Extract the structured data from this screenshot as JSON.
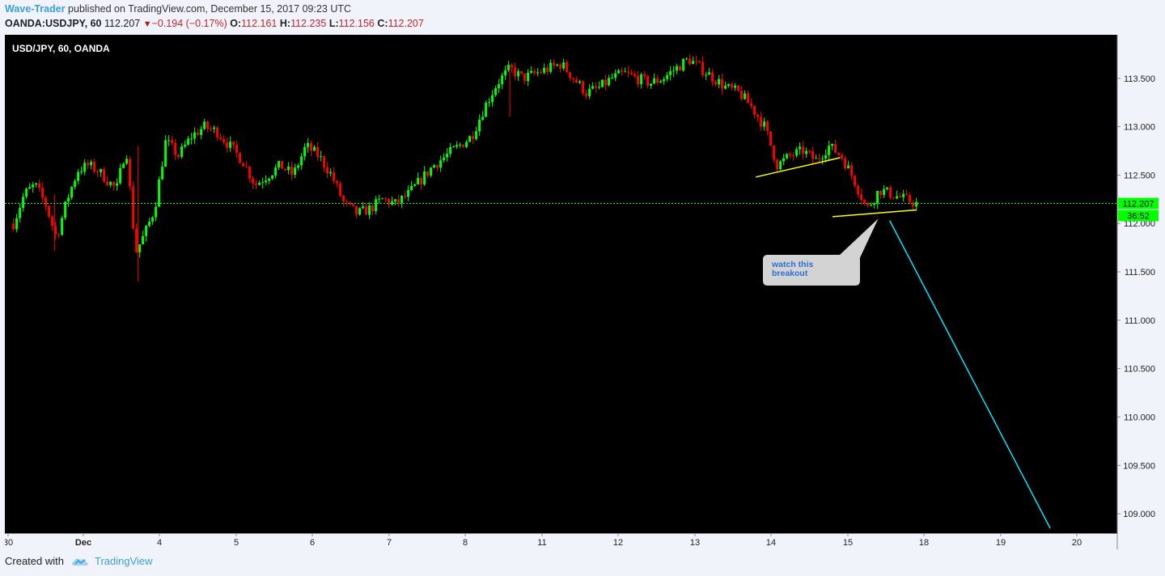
{
  "header": {
    "author": "Wave-Trader",
    "published_text": " published on TradingView.com, December 15, 2017 09:23 UTC",
    "symbol": "OANDA:USDJPY, 60",
    "last": "112.207",
    "change": "−0.194 (−0.17%)",
    "open_label": "O:",
    "open": "112.161",
    "high_label": "H:",
    "high": "112.235",
    "low_label": "L:",
    "low": "112.156",
    "close_label": "C:",
    "close": "112.207"
  },
  "footer": {
    "created_with": "Created with",
    "brand": "TradingView"
  },
  "colors": {
    "background": "#000000",
    "up": "#00ff00",
    "down": "#ff0000",
    "trendline": "#ffff00",
    "projection": "#00e5ff",
    "price_line": "#00ff00",
    "callout_bg": "#d3d3d3",
    "callout_text": "#2b6fd6",
    "axis_bg": "#f0f3fa",
    "author_link": "#3b9fd8"
  },
  "icons": [
    "tradingview-cloud-icon",
    "down-triangle-icon"
  ],
  "chart_data": {
    "type": "candlestick",
    "title": "USD/JPY, 60, OANDA",
    "timeframe": "60",
    "ylim": [
      108.8,
      113.95
    ],
    "y_ticks": [
      "113.500",
      "113.000",
      "112.500",
      "112.000",
      "111.500",
      "111.000",
      "110.500",
      "110.000",
      "109.500",
      "109.000"
    ],
    "x_ticks": [
      "30",
      "Dec",
      "4",
      "5",
      "6",
      "7",
      "8",
      "11",
      "12",
      "13",
      "14",
      "15",
      "18",
      "19",
      "20"
    ],
    "last_price": "112.207",
    "last_price_label": "112.207",
    "countdown_label": "36:52",
    "price_path": [
      [
        "30",
        112.0
      ],
      [
        "30",
        112.3
      ],
      [
        "30",
        112.4
      ],
      [
        "30",
        112.2
      ],
      [
        "30",
        111.85
      ],
      [
        "30",
        112.25
      ],
      [
        "30",
        112.55
      ],
      [
        "Dec",
        112.6
      ],
      [
        "Dec",
        112.55
      ],
      [
        "Dec",
        112.45
      ],
      [
        "Dec",
        112.35
      ],
      [
        "Dec",
        112.8
      ],
      [
        "Dec",
        111.7
      ],
      [
        "Dec",
        111.9
      ],
      [
        "Dec",
        112.15
      ],
      [
        "4",
        112.85
      ],
      [
        "4",
        112.7
      ],
      [
        "4",
        112.9
      ],
      [
        "4",
        113.0
      ],
      [
        "4",
        112.95
      ],
      [
        "4",
        112.8
      ],
      [
        "5",
        112.65
      ],
      [
        "5",
        112.4
      ],
      [
        "5",
        112.5
      ],
      [
        "5",
        112.6
      ],
      [
        "5",
        112.5
      ],
      [
        "5",
        112.8
      ],
      [
        "6",
        112.7
      ],
      [
        "6",
        112.5
      ],
      [
        "6",
        112.2
      ],
      [
        "6",
        112.1
      ],
      [
        "6",
        112.15
      ],
      [
        "6",
        112.25
      ],
      [
        "7",
        112.2
      ],
      [
        "7",
        112.3
      ],
      [
        "7",
        112.45
      ],
      [
        "7",
        112.6
      ],
      [
        "7",
        112.7
      ],
      [
        "7",
        112.8
      ],
      [
        "8",
        112.9
      ],
      [
        "8",
        113.2
      ],
      [
        "8",
        113.45
      ],
      [
        "8",
        113.6
      ],
      [
        "8",
        113.5
      ],
      [
        "8",
        113.55
      ],
      [
        "11",
        113.6
      ],
      [
        "11",
        113.65
      ],
      [
        "11",
        113.5
      ],
      [
        "11",
        113.35
      ],
      [
        "11",
        113.4
      ],
      [
        "11",
        113.5
      ],
      [
        "12",
        113.55
      ],
      [
        "12",
        113.5
      ],
      [
        "12",
        113.45
      ],
      [
        "12",
        113.5
      ],
      [
        "12",
        113.6
      ],
      [
        "12",
        113.7
      ],
      [
        "13",
        113.6
      ],
      [
        "13",
        113.5
      ],
      [
        "13",
        113.4
      ],
      [
        "13",
        113.35
      ],
      [
        "13",
        113.2
      ],
      [
        "13",
        113.0
      ],
      [
        "14",
        112.6
      ],
      [
        "14",
        112.7
      ],
      [
        "14",
        112.75
      ],
      [
        "14",
        112.65
      ],
      [
        "14",
        112.8
      ],
      [
        "14",
        112.7
      ],
      [
        "15",
        112.45
      ],
      [
        "15",
        112.15
      ],
      [
        "15",
        112.35
      ],
      [
        "15",
        112.3
      ],
      [
        "15",
        112.25
      ],
      [
        "15",
        112.2
      ]
    ],
    "annotations": {
      "callout_text": "watch this breakout",
      "trendlines": [
        {
          "from": [
            "13",
            112.48
          ],
          "to": [
            "14",
            112.68
          ]
        },
        {
          "from": [
            "14",
            112.07
          ],
          "to": [
            "15",
            112.14
          ]
        }
      ],
      "projection": {
        "from": [
          "15",
          112.03
        ],
        "to": [
          "19",
          108.85
        ]
      }
    }
  }
}
